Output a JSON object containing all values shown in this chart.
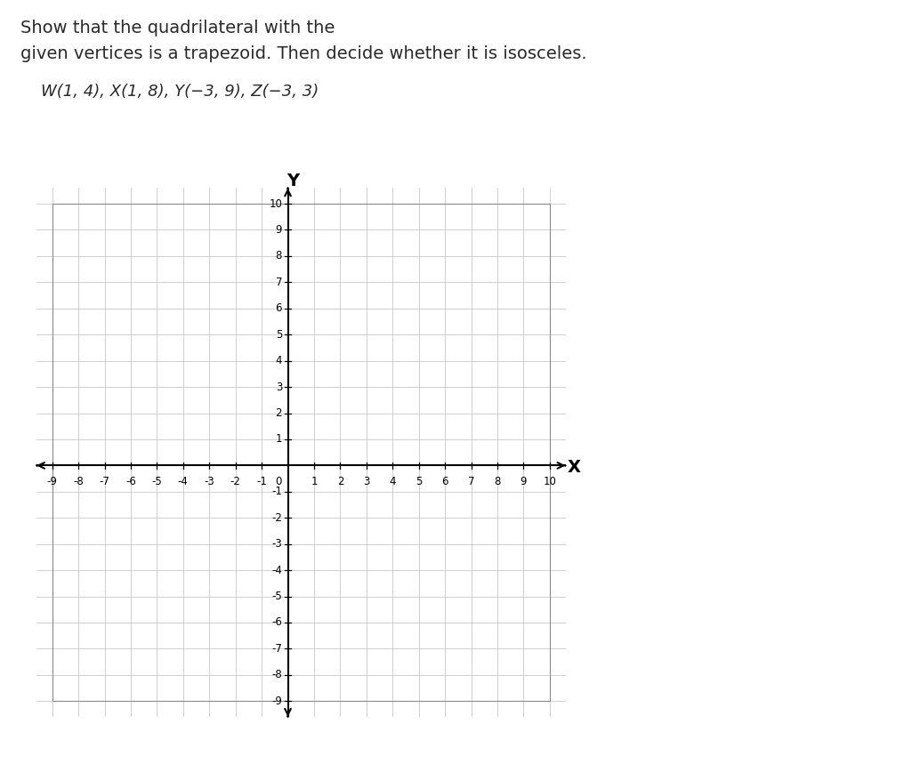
{
  "title_line1": "Show that the quadrilateral with the",
  "title_line2": "given vertices is a trapezoid. Then decide whether it is isosceles.",
  "subtitle": "W(1, 4), X(1, 8), Y(−3, 9), Z(−3, 3)",
  "xmin": -9,
  "xmax": 10,
  "ymin": -9,
  "ymax": 10,
  "grid_color": "#c8c8c8",
  "axis_color": "#000000",
  "background_color": "#ffffff",
  "tick_fontsize": 8.5,
  "label_fontsize": 13,
  "title_fontsize1": 14,
  "title_fontsize2": 14,
  "subtitle_fontsize": 13
}
